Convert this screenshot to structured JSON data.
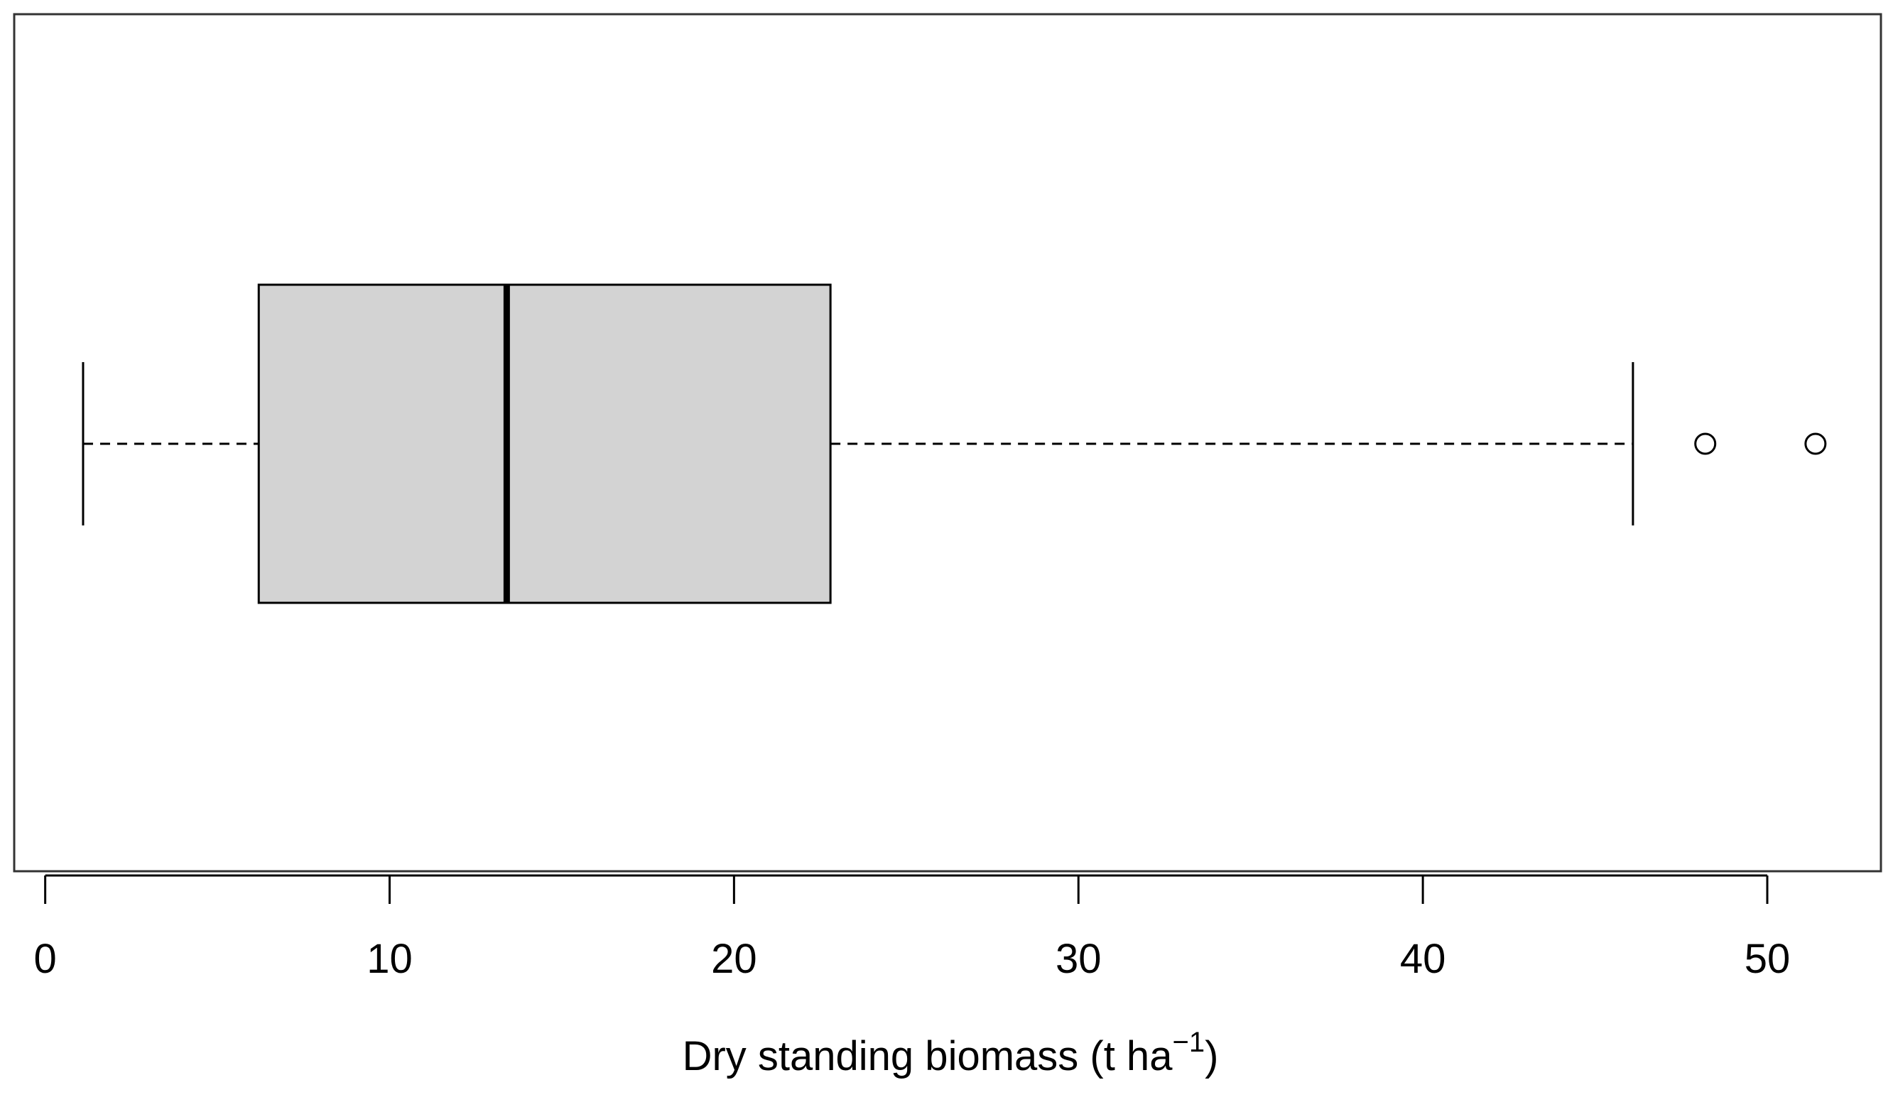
{
  "chart_data": {
    "type": "box",
    "orientation": "horizontal",
    "title": "",
    "xlabel": {
      "main": "Dry standing biomass (t ha",
      "superscript": "−1",
      "close": ")"
    },
    "ylabel": "",
    "xlim": [
      -0.9,
      53.3
    ],
    "x_ticks": [
      0,
      10,
      20,
      30,
      40,
      50
    ],
    "x_tick_labels": [
      "0",
      "10",
      "20",
      "30",
      "40",
      "50"
    ],
    "grid": false,
    "legend": "none",
    "box": {
      "whisker_low": 1.1,
      "q1": 6.2,
      "median": 13.4,
      "q3": 22.8,
      "whisker_high": 46.1,
      "outliers": [
        48.2,
        51.4
      ]
    },
    "colors": {
      "box_fill": "#d3d3d3",
      "stroke": "#000000",
      "background": "#ffffff"
    }
  }
}
